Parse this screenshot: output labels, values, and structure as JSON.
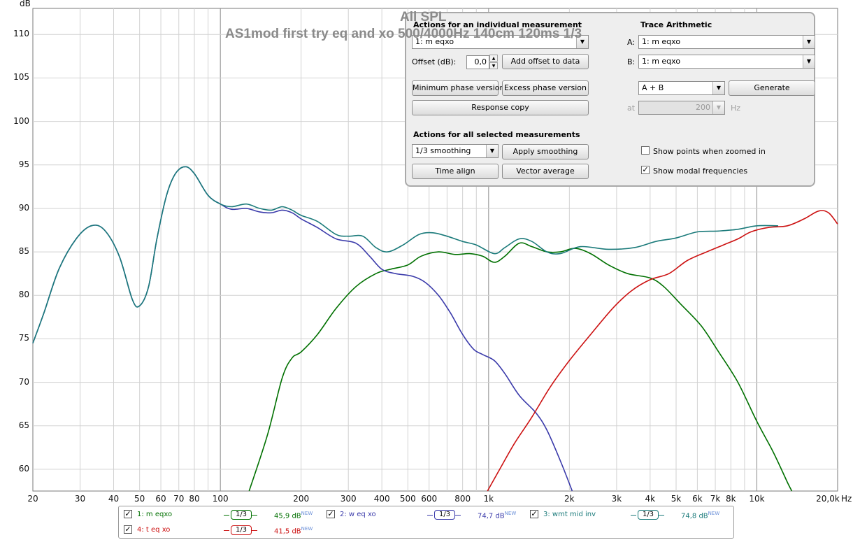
{
  "chart_data": {
    "type": "line",
    "title": "All SPL",
    "subtitle": "AS1mod first try eq and xo 500/4000Hz 140cm 120ms 1/3",
    "ylabel": "dB",
    "xlabel": "Hz",
    "xscale": "log",
    "xlim": [
      20,
      20000
    ],
    "ylim": [
      57.5,
      113
    ],
    "yticks": [
      60,
      65,
      70,
      75,
      80,
      85,
      90,
      95,
      100,
      105,
      110
    ],
    "xticks": [
      {
        "v": 20,
        "label": "20"
      },
      {
        "v": 30,
        "label": "30"
      },
      {
        "v": 40,
        "label": "40"
      },
      {
        "v": 50,
        "label": "50"
      },
      {
        "v": 60,
        "label": "60"
      },
      {
        "v": 70,
        "label": "70"
      },
      {
        "v": 80,
        "label": "80"
      },
      {
        "v": 100,
        "label": "100"
      },
      {
        "v": 200,
        "label": "200"
      },
      {
        "v": 300,
        "label": "300"
      },
      {
        "v": 400,
        "label": "400"
      },
      {
        "v": 500,
        "label": "500"
      },
      {
        "v": 600,
        "label": "600"
      },
      {
        "v": 800,
        "label": "800"
      },
      {
        "v": 1000,
        "label": "1k"
      },
      {
        "v": 2000,
        "label": "2k"
      },
      {
        "v": 3000,
        "label": "3k"
      },
      {
        "v": 4000,
        "label": "4k"
      },
      {
        "v": 5000,
        "label": "5k"
      },
      {
        "v": 6000,
        "label": "6k"
      },
      {
        "v": 7000,
        "label": "7k"
      },
      {
        "v": 8000,
        "label": "8k"
      },
      {
        "v": 10000,
        "label": "10k"
      },
      {
        "v": 20000,
        "label": "20,0k"
      }
    ],
    "grid": true,
    "series": [
      {
        "name": "1: m eqxo",
        "color": "#007000",
        "points": [
          [
            128,
            57.5
          ],
          [
            150,
            64
          ],
          [
            170,
            70.5
          ],
          [
            185,
            72.8
          ],
          [
            200,
            73.5
          ],
          [
            230,
            75.5
          ],
          [
            270,
            78.5
          ],
          [
            320,
            81
          ],
          [
            380,
            82.5
          ],
          [
            430,
            83
          ],
          [
            500,
            83.5
          ],
          [
            560,
            84.5
          ],
          [
            650,
            85
          ],
          [
            750,
            84.7
          ],
          [
            850,
            84.8
          ],
          [
            950,
            84.5
          ],
          [
            1050,
            83.8
          ],
          [
            1150,
            84.5
          ],
          [
            1300,
            86
          ],
          [
            1450,
            85.6
          ],
          [
            1650,
            85
          ],
          [
            1850,
            85
          ],
          [
            2100,
            85.4
          ],
          [
            2400,
            84.8
          ],
          [
            2800,
            83.5
          ],
          [
            3300,
            82.5
          ],
          [
            4000,
            82
          ],
          [
            4500,
            81
          ],
          [
            5200,
            79
          ],
          [
            6200,
            76.5
          ],
          [
            7200,
            73.5
          ],
          [
            8500,
            70
          ],
          [
            10000,
            65.5
          ],
          [
            11500,
            62
          ],
          [
            13000,
            58.5
          ],
          [
            13500,
            57.5
          ]
        ]
      },
      {
        "name": "2: w eq xo",
        "color": "#3a3aaa",
        "points": [
          [
            20,
            74.5
          ],
          [
            22,
            78
          ],
          [
            25,
            83
          ],
          [
            29,
            86.5
          ],
          [
            33,
            88
          ],
          [
            37,
            87.5
          ],
          [
            42,
            84.5
          ],
          [
            47,
            79.5
          ],
          [
            50,
            78.8
          ],
          [
            54,
            81
          ],
          [
            58,
            86.5
          ],
          [
            63,
            91.5
          ],
          [
            68,
            94
          ],
          [
            74,
            94.8
          ],
          [
            80,
            94
          ],
          [
            90,
            91.5
          ],
          [
            100,
            90.5
          ],
          [
            110,
            89.9
          ],
          [
            125,
            90
          ],
          [
            140,
            89.6
          ],
          [
            155,
            89.5
          ],
          [
            170,
            89.8
          ],
          [
            185,
            89.5
          ],
          [
            200,
            88.8
          ],
          [
            230,
            87.8
          ],
          [
            270,
            86.5
          ],
          [
            320,
            86
          ],
          [
            360,
            84.5
          ],
          [
            400,
            83
          ],
          [
            450,
            82.5
          ],
          [
            520,
            82.2
          ],
          [
            580,
            81.5
          ],
          [
            650,
            80
          ],
          [
            720,
            78
          ],
          [
            800,
            75.5
          ],
          [
            880,
            73.8
          ],
          [
            950,
            73.2
          ],
          [
            1050,
            72.5
          ],
          [
            1150,
            71
          ],
          [
            1300,
            68.5
          ],
          [
            1500,
            66.5
          ],
          [
            1650,
            64.5
          ],
          [
            1850,
            61
          ],
          [
            2050,
            57.5
          ]
        ]
      },
      {
        "name": "3: wmt mid inv",
        "color": "#1a7a7a",
        "points": [
          [
            20,
            74.5
          ],
          [
            22,
            78
          ],
          [
            25,
            83
          ],
          [
            29,
            86.5
          ],
          [
            33,
            88
          ],
          [
            37,
            87.5
          ],
          [
            42,
            84.5
          ],
          [
            47,
            79.5
          ],
          [
            50,
            78.8
          ],
          [
            54,
            81
          ],
          [
            58,
            86.5
          ],
          [
            63,
            91.5
          ],
          [
            68,
            94
          ],
          [
            74,
            94.8
          ],
          [
            80,
            94
          ],
          [
            90,
            91.5
          ],
          [
            100,
            90.5
          ],
          [
            110,
            90.2
          ],
          [
            125,
            90.5
          ],
          [
            140,
            90
          ],
          [
            155,
            89.8
          ],
          [
            170,
            90.2
          ],
          [
            185,
            89.8
          ],
          [
            200,
            89.2
          ],
          [
            230,
            88.5
          ],
          [
            270,
            87
          ],
          [
            300,
            86.8
          ],
          [
            340,
            86.8
          ],
          [
            380,
            85.5
          ],
          [
            420,
            85
          ],
          [
            480,
            85.8
          ],
          [
            550,
            87
          ],
          [
            620,
            87.2
          ],
          [
            700,
            86.8
          ],
          [
            800,
            86.2
          ],
          [
            900,
            85.8
          ],
          [
            1050,
            84.8
          ],
          [
            1150,
            85.5
          ],
          [
            1300,
            86.5
          ],
          [
            1450,
            86.2
          ],
          [
            1650,
            85
          ],
          [
            1850,
            84.8
          ],
          [
            2200,
            85.6
          ],
          [
            2800,
            85.3
          ],
          [
            3500,
            85.5
          ],
          [
            4200,
            86.2
          ],
          [
            5000,
            86.6
          ],
          [
            6000,
            87.3
          ],
          [
            7200,
            87.4
          ],
          [
            8500,
            87.6
          ],
          [
            10000,
            88
          ],
          [
            12000,
            88
          ]
        ]
      },
      {
        "name": "4: t eq xo",
        "color": "#cc1111",
        "points": [
          [
            990,
            57.5
          ],
          [
            1100,
            60
          ],
          [
            1250,
            63
          ],
          [
            1450,
            66
          ],
          [
            1700,
            69.5
          ],
          [
            2000,
            72.5
          ],
          [
            2400,
            75.5
          ],
          [
            2900,
            78.5
          ],
          [
            3400,
            80.5
          ],
          [
            4000,
            81.8
          ],
          [
            4700,
            82.5
          ],
          [
            5500,
            84
          ],
          [
            6500,
            85
          ],
          [
            7500,
            85.8
          ],
          [
            8500,
            86.5
          ],
          [
            9500,
            87.3
          ],
          [
            11000,
            87.8
          ],
          [
            13000,
            88
          ],
          [
            15000,
            88.8
          ],
          [
            17000,
            89.7
          ],
          [
            18500,
            89.5
          ],
          [
            20000,
            88.2
          ]
        ]
      }
    ]
  },
  "panel": {
    "individual_title": "Actions for an individual measurement",
    "meas_select": "1: m eqxo",
    "offset_label": "Offset (dB):",
    "offset_value": "0,0",
    "add_offset": "Add offset to data",
    "min_phase": "Minimum phase version",
    "excess_phase": "Excess phase version",
    "response_copy": "Response copy",
    "all_title": "Actions for all selected measurements",
    "smoothing_select": "1/3 smoothing",
    "apply_smoothing": "Apply smoothing",
    "time_align": "Time align",
    "vector_average": "Vector average",
    "trace_title": "Trace Arithmetic",
    "a_label": "A:",
    "a_value": "1: m eqxo",
    "b_label": "B:",
    "b_value": "1: m eqxo",
    "op_value": "A + B",
    "generate": "Generate",
    "at_label": "at",
    "at_value": "200",
    "hz_label": "Hz",
    "show_points": "Show points when zoomed in",
    "show_modal": "Show modal frequencies"
  },
  "legend": [
    {
      "name": "1: m eqxo",
      "color": "#007000",
      "smoothing": "1/3",
      "level": "45,9 dB",
      "tag": "NEW"
    },
    {
      "name": "2: w eq xo",
      "color": "#3a3aaa",
      "smoothing": "1/3",
      "level": "74,7 dB",
      "tag": "NEW"
    },
    {
      "name": "3: wmt mid inv",
      "color": "#1a7a7a",
      "smoothing": "1/3",
      "level": "74,8 dB",
      "tag": "NEW"
    },
    {
      "name": "4: t eq xo",
      "color": "#cc1111",
      "smoothing": "1/3",
      "level": "41,5 dB",
      "tag": "NEW"
    }
  ],
  "check": "✓",
  "arrow": "▼",
  "spin_up": "▲",
  "spin_down": "▼"
}
